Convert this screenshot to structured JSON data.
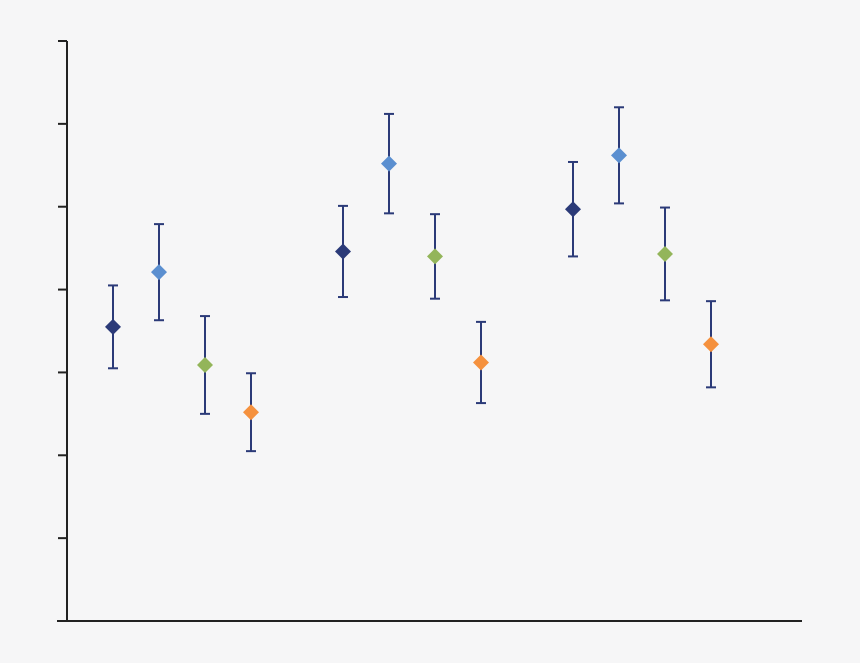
{
  "chart_data": {
    "type": "errorbar",
    "categories": [
      null,
      null,
      null
    ],
    "series": [
      {
        "color": "#2b3a78",
        "values": [
          3.55,
          4.46,
          4.97
        ],
        "errors": [
          0.5,
          0.55,
          0.57
        ]
      },
      {
        "color": "#5b8fd0",
        "values": [
          4.21,
          5.52,
          5.62
        ],
        "errors": [
          0.58,
          0.6,
          0.58
        ]
      },
      {
        "color": "#93b55a",
        "values": [
          3.09,
          4.4,
          4.43
        ],
        "errors": [
          0.59,
          0.51,
          0.56
        ]
      },
      {
        "color": "#f5913e",
        "values": [
          2.52,
          3.12,
          3.34
        ],
        "errors": [
          0.47,
          0.49,
          0.52
        ]
      }
    ],
    "error_color": "#2b3a78",
    "ylim": [
      0,
      7
    ],
    "yticks": [
      0,
      1,
      2,
      3,
      4,
      5,
      6,
      7
    ],
    "grid": false
  }
}
